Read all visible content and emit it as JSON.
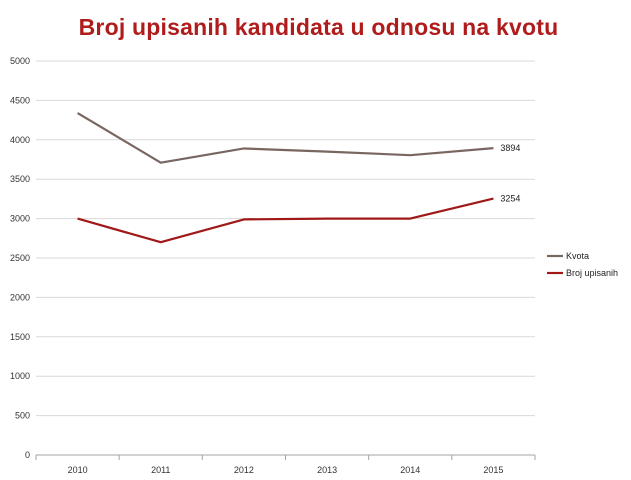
{
  "chart_data": {
    "type": "line",
    "title": "Broj upisanih kandidata u odnosu na kvotu",
    "xlabel": "",
    "ylabel": "",
    "categories": [
      "2010",
      "2011",
      "2012",
      "2013",
      "2014",
      "2015"
    ],
    "ylim": [
      0,
      5000
    ],
    "yticks": [
      "0",
      "500",
      "1000",
      "1500",
      "2000",
      "2500",
      "3000",
      "3500",
      "4000",
      "4500",
      "5000"
    ],
    "grid": true,
    "legend_position": "right",
    "series": [
      {
        "name": "Kvota",
        "color": "#7a6660",
        "values": [
          4340,
          3710,
          3890,
          3850,
          3805,
          3894
        ],
        "end_label": "3894"
      },
      {
        "name": "Broj upisanih",
        "color": "#a01818",
        "values": [
          3000,
          2700,
          2990,
          3000,
          3000,
          3254
        ],
        "end_label": "3254"
      }
    ]
  }
}
